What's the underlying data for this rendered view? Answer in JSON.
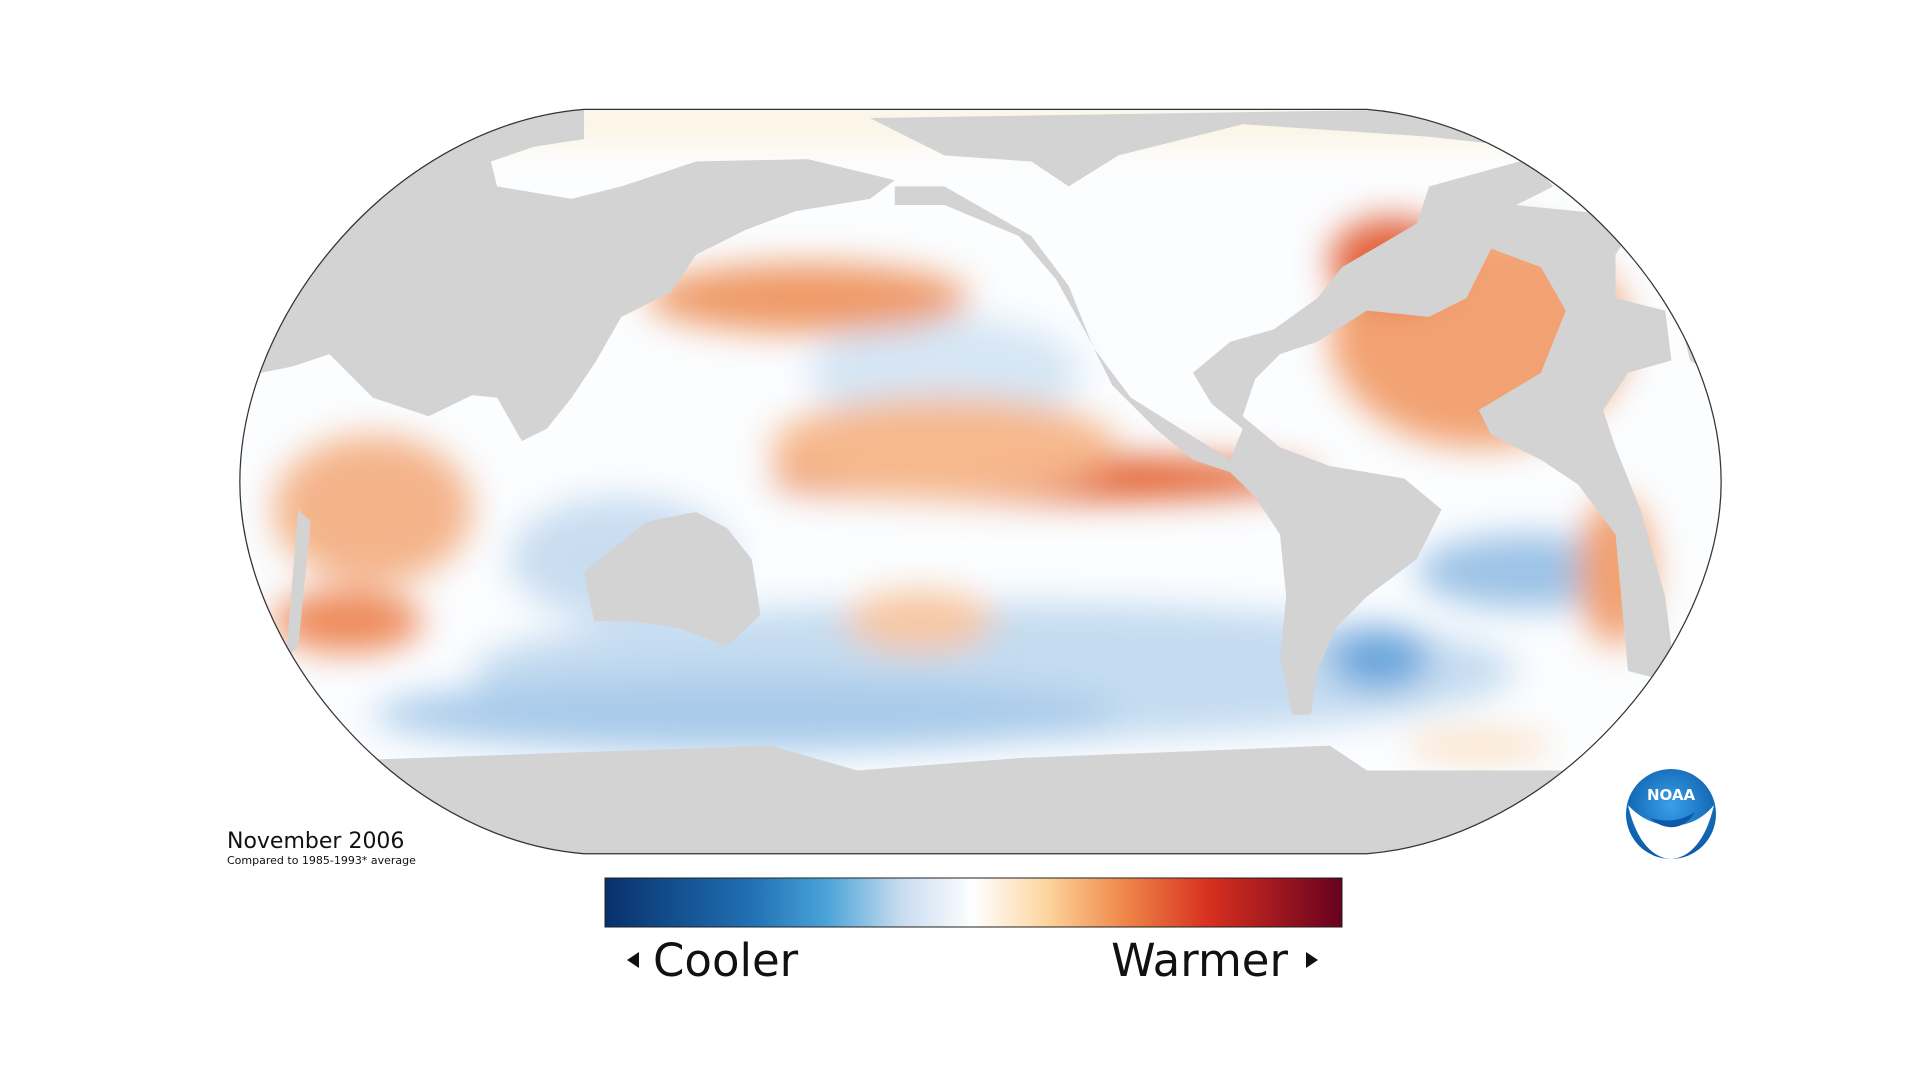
{
  "map": {
    "date": "November 2006",
    "baseline": "Compared to 1985-1993* average"
  },
  "legend": {
    "low": "Cooler",
    "high": "Warmer"
  },
  "logo": "NOAA"
}
